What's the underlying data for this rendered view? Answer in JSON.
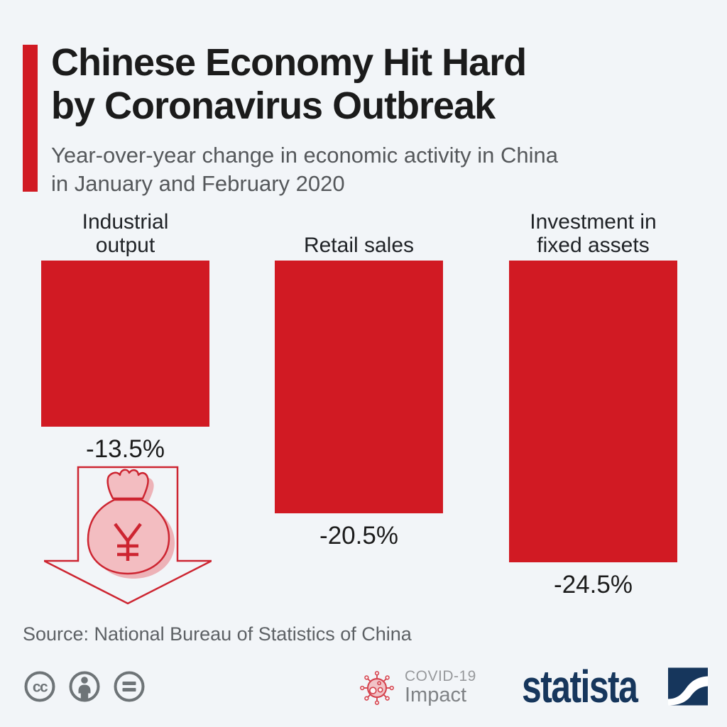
{
  "header": {
    "title": [
      "Chinese Economy Hit Hard",
      "by Coronavirus Outbreak"
    ],
    "subtitle": [
      "Year-over-year change in economic activity in China",
      "in January and February 2020"
    ]
  },
  "chart_data": {
    "type": "bar",
    "title": "Chinese Economy Hit Hard by Coronavirus Outbreak",
    "subtitle": "Year-over-year change in economic activity in China in January and February 2020",
    "categories": [
      "Industrial output",
      "Retail sales",
      "Investment in fixed assets"
    ],
    "values": [
      -13.5,
      -20.5,
      -24.5
    ],
    "value_labels": [
      "-13.5%",
      "-20.5%",
      "-24.5%"
    ],
    "unit": "% year-over-year change",
    "ylim": [
      -25,
      0
    ],
    "grid": false,
    "legend": false,
    "bar_color": "#d11a23",
    "orientation": "vertical bars hanging downward from a common top baseline"
  },
  "decoration": {
    "money_bag_icon": "money-bag-with-yuan-inside-down-arrow",
    "currency_symbol": "¥"
  },
  "footer": {
    "source": "Source: National Bureau of Statistics of China",
    "cc_label": "cc",
    "license_icons": [
      "cc-license-icon",
      "attribution-person-icon",
      "no-derivatives-equals-icon"
    ],
    "badge": {
      "line1": "COVID-19",
      "line2": "Impact"
    },
    "brand": "statista"
  },
  "colors": {
    "background": "#f2f5f8",
    "accent_red": "#d11a23",
    "title_text": "#1b1b1b",
    "subtitle_text": "#55585b",
    "source_text": "#5d6165",
    "license_gray": "#6e7477",
    "badge_gray": "#8c8f92",
    "brand_navy": "#16365c",
    "icon_pink_fill": "#f3bdc1",
    "icon_pink_shadow": "#edb2b7",
    "icon_red_stroke": "#cd2531"
  }
}
